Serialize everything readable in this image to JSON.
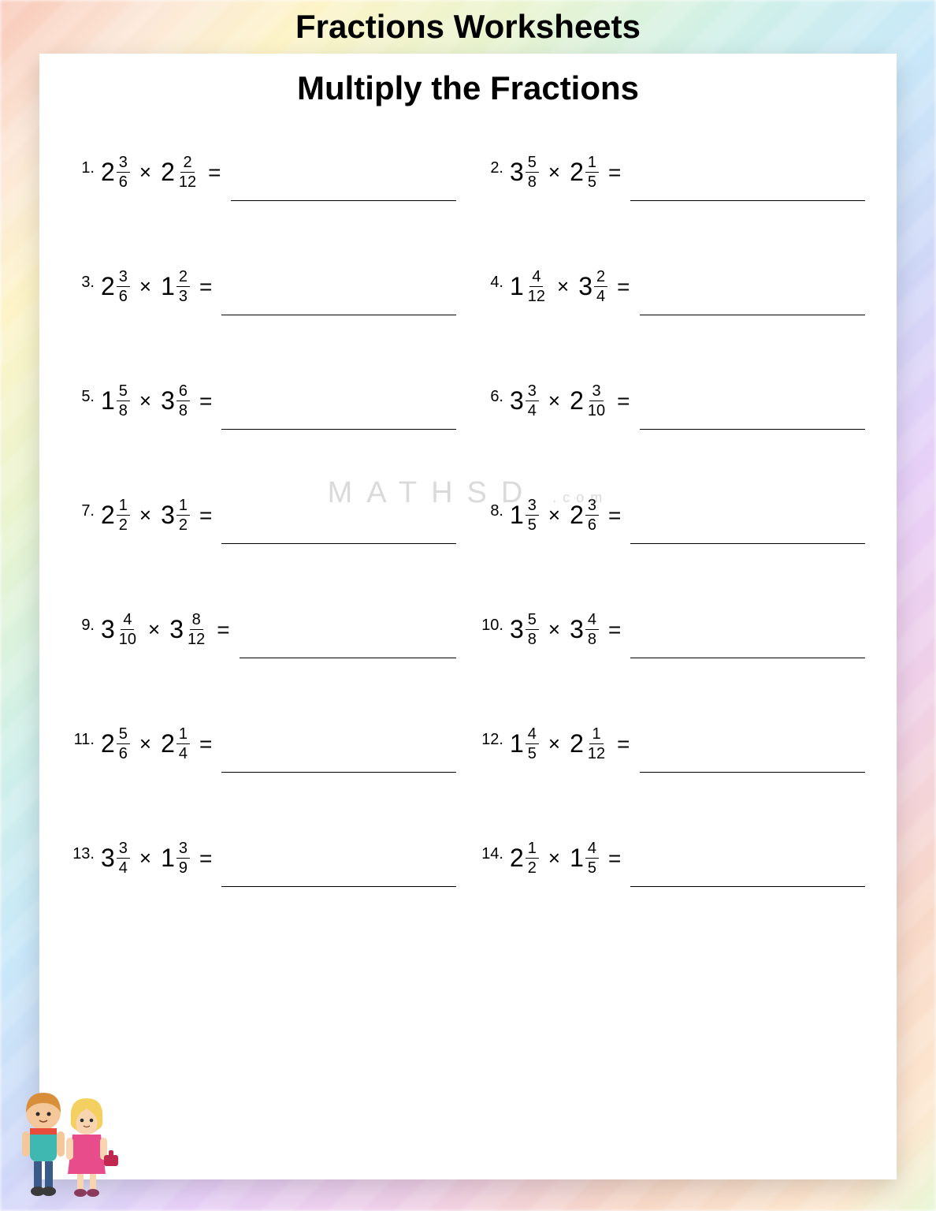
{
  "title": "Fractions Worksheets",
  "subtitle": "Multiply the Fractions",
  "watermark_main": "MATHSD",
  "watermark_small": ".com",
  "operator": "×",
  "equals": "=",
  "colors": {
    "background": "#ffffff",
    "text": "#000000",
    "line": "#000000",
    "watermark": "rgba(150,150,150,0.35)"
  },
  "problems": [
    {
      "n": "1.",
      "a_whole": "2",
      "a_num": "3",
      "a_den": "6",
      "b_whole": "2",
      "b_num": "2",
      "b_den": "12"
    },
    {
      "n": "2.",
      "a_whole": "3",
      "a_num": "5",
      "a_den": "8",
      "b_whole": "2",
      "b_num": "1",
      "b_den": "5"
    },
    {
      "n": "3.",
      "a_whole": "2",
      "a_num": "3",
      "a_den": "6",
      "b_whole": "1",
      "b_num": "2",
      "b_den": "3"
    },
    {
      "n": "4.",
      "a_whole": "1",
      "a_num": "4",
      "a_den": "12",
      "b_whole": "3",
      "b_num": "2",
      "b_den": "4"
    },
    {
      "n": "5.",
      "a_whole": "1",
      "a_num": "5",
      "a_den": "8",
      "b_whole": "3",
      "b_num": "6",
      "b_den": "8"
    },
    {
      "n": "6.",
      "a_whole": "3",
      "a_num": "3",
      "a_den": "4",
      "b_whole": "2",
      "b_num": "3",
      "b_den": "10"
    },
    {
      "n": "7.",
      "a_whole": "2",
      "a_num": "1",
      "a_den": "2",
      "b_whole": "3",
      "b_num": "1",
      "b_den": "2"
    },
    {
      "n": "8.",
      "a_whole": "1",
      "a_num": "3",
      "a_den": "5",
      "b_whole": "2",
      "b_num": "3",
      "b_den": "6"
    },
    {
      "n": "9.",
      "a_whole": "3",
      "a_num": "4",
      "a_den": "10",
      "b_whole": "3",
      "b_num": "8",
      "b_den": "12"
    },
    {
      "n": "10.",
      "a_whole": "3",
      "a_num": "5",
      "a_den": "8",
      "b_whole": "3",
      "b_num": "4",
      "b_den": "8"
    },
    {
      "n": "11.",
      "a_whole": "2",
      "a_num": "5",
      "a_den": "6",
      "b_whole": "2",
      "b_num": "1",
      "b_den": "4"
    },
    {
      "n": "12.",
      "a_whole": "1",
      "a_num": "4",
      "a_den": "5",
      "b_whole": "2",
      "b_num": "1",
      "b_den": "12"
    },
    {
      "n": "13.",
      "a_whole": "3",
      "a_num": "3",
      "a_den": "4",
      "b_whole": "1",
      "b_num": "3",
      "b_den": "9"
    },
    {
      "n": "14.",
      "a_whole": "2",
      "a_num": "1",
      "a_den": "2",
      "b_whole": "1",
      "b_num": "4",
      "b_den": "5"
    }
  ]
}
